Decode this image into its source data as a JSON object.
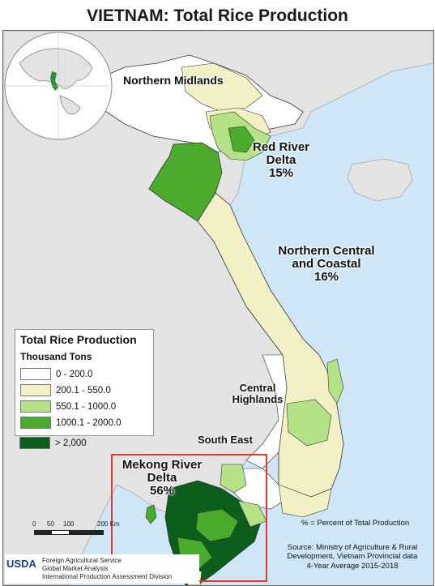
{
  "title": "VIETNAM: Total Rice Production",
  "regions": {
    "northern_midlands": {
      "name": "Northern Midlands"
    },
    "red_river": {
      "name": "Red River Delta",
      "name1": "Red River",
      "name2": "Delta",
      "pct": "15%"
    },
    "northern_central": {
      "name1": "Northern Central",
      "name2": "and Coastal",
      "pct": "16%"
    },
    "central_highlands": {
      "name1": "Central",
      "name2": "Highlands"
    },
    "south_east": {
      "name": "South East"
    },
    "mekong": {
      "name1": "Mekong River",
      "name2": "Delta",
      "pct": "56%"
    }
  },
  "legend": {
    "title": "Total Rice Production",
    "subtitle": "Thousand Tons",
    "classes": [
      {
        "label": "0 - 200.0",
        "color": "#ffffff"
      },
      {
        "label": "200.1 - 550.0",
        "color": "#f2f0c4"
      },
      {
        "label": "550.1 - 1000.0",
        "color": "#b5e187"
      },
      {
        "label": "1000.1 - 2000.0",
        "color": "#4aab2d"
      },
      {
        "label": "> 2,000",
        "color": "#0c5e1c"
      }
    ]
  },
  "scale": {
    "ticks": [
      "0",
      "50",
      "100",
      "200 Km"
    ]
  },
  "note": "% = Percent of Total Production",
  "source": {
    "line1": "Source: Ministry of Agriculture & Rural",
    "line2": "Development, Vietnam Provincial data",
    "line3": "4-Year Average 2015-2018"
  },
  "credits": {
    "logo": "USDA",
    "line1": "Foreign Agricultural Service",
    "line2": "Global Market Analysis",
    "line3": "International Production Assessment Division"
  },
  "colors": {
    "sea": "#cfe6f7",
    "land_other": "#e3e3e3",
    "highlight_box": "#e23b2e",
    "border": "#222222"
  }
}
